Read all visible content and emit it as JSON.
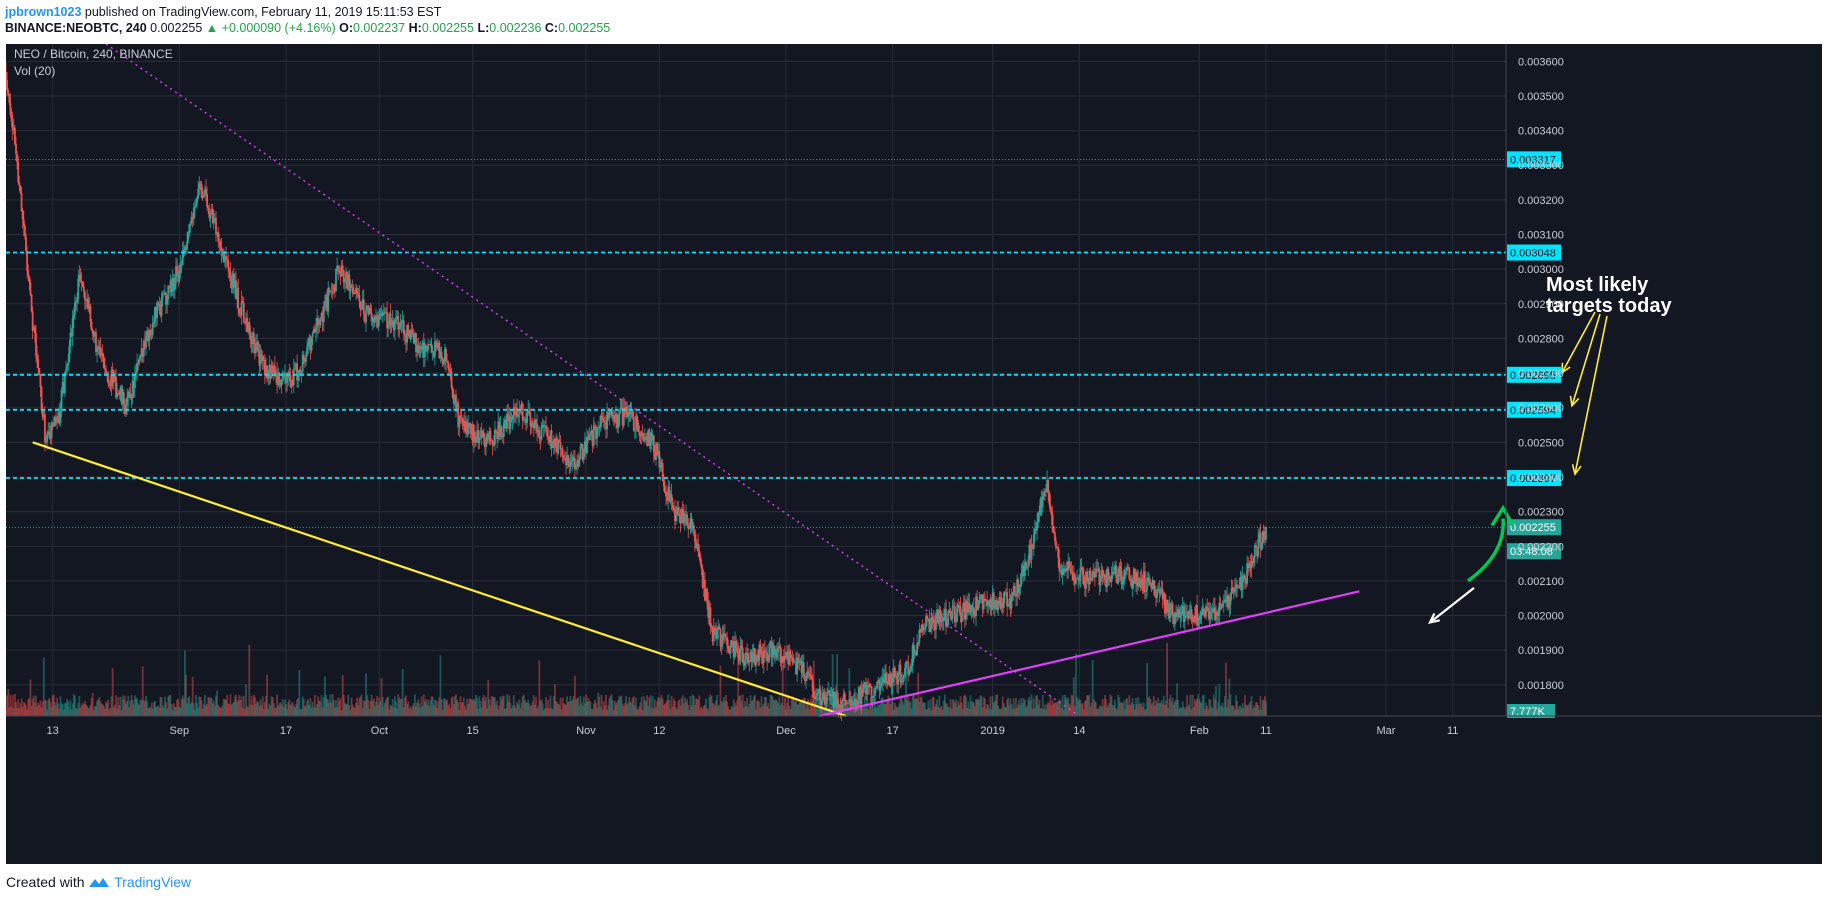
{
  "header": {
    "author": "jpbrown1023",
    "published": "published on TradingView.com, February 11, 2019 15:11:53 EST",
    "symbol": "BINANCE:NEOBTC, 240",
    "last": "0.002255",
    "change": "▲ +0.000090 (+4.16%)",
    "o_label": "O:",
    "o": "0.002237",
    "h_label": "H:",
    "h": "0.002255",
    "l_label": "L:",
    "l": "0.002236",
    "c_label": "C:",
    "c": "0.002255"
  },
  "legend": {
    "pair": "NEO / Bitcoin, 240, BINANCE",
    "vol": "Vol (20)"
  },
  "annotation": {
    "line1": "Most likely",
    "line2": "targets today"
  },
  "footer": {
    "created": "Created with",
    "brand": "TradingView"
  },
  "colors": {
    "background": "#131722",
    "up": "#26a69a",
    "down": "#ef5350",
    "level": "#00e5ff",
    "trend_yellow": "#ffeb3b",
    "trend_magenta": "#e040fb",
    "arrow_green": "#00c853"
  },
  "chart_data": {
    "type": "candlestick",
    "title": "NEO / Bitcoin, 240, BINANCE",
    "ylim": [
      0.00171,
      0.00365
    ],
    "y_ticks": [
      "0.003600",
      "0.003500",
      "0.003400",
      "0.003300",
      "0.003200",
      "0.003100",
      "0.003000",
      "0.002900",
      "0.002800",
      "0.002700",
      "0.002600",
      "0.002500",
      "0.002400",
      "0.002300",
      "0.002200",
      "0.002100",
      "0.002000",
      "0.001900",
      "0.001800"
    ],
    "x_ticks": [
      {
        "label": "13",
        "date": "2018-08-13"
      },
      {
        "label": "Sep",
        "date": "2018-09-01"
      },
      {
        "label": "17",
        "date": "2018-09-17"
      },
      {
        "label": "Oct",
        "date": "2018-10-01"
      },
      {
        "label": "15",
        "date": "2018-10-15"
      },
      {
        "label": "Nov",
        "date": "2018-11-01"
      },
      {
        "label": "12",
        "date": "2018-11-12"
      },
      {
        "label": "Dec",
        "date": "2018-12-01"
      },
      {
        "label": "17",
        "date": "2018-12-17"
      },
      {
        "label": "2019",
        "date": "2019-01-01"
      },
      {
        "label": "14",
        "date": "2019-01-14"
      },
      {
        "label": "Feb",
        "date": "2019-02-01"
      },
      {
        "label": "11",
        "date": "2019-02-11"
      },
      {
        "label": "Mar",
        "date": "2019-03-01"
      },
      {
        "label": "11",
        "date": "2019-03-11"
      }
    ],
    "price_path": [
      [
        "2018-08-06",
        0.00357
      ],
      [
        "2018-08-08",
        0.00325
      ],
      [
        "2018-08-10",
        0.00285
      ],
      [
        "2018-08-12",
        0.0025
      ],
      [
        "2018-08-14",
        0.00258
      ],
      [
        "2018-08-17",
        0.00298
      ],
      [
        "2018-08-20",
        0.00275
      ],
      [
        "2018-08-24",
        0.0026
      ],
      [
        "2018-08-28",
        0.00285
      ],
      [
        "2018-09-01",
        0.003
      ],
      [
        "2018-09-04",
        0.00325
      ],
      [
        "2018-09-06",
        0.00315
      ],
      [
        "2018-09-10",
        0.0029
      ],
      [
        "2018-09-14",
        0.0027
      ],
      [
        "2018-09-18",
        0.00268
      ],
      [
        "2018-09-21",
        0.0028
      ],
      [
        "2018-09-25",
        0.003
      ],
      [
        "2018-09-29",
        0.00287
      ],
      [
        "2018-10-03",
        0.00285
      ],
      [
        "2018-10-07",
        0.00278
      ],
      [
        "2018-10-11",
        0.00275
      ],
      [
        "2018-10-13",
        0.00255
      ],
      [
        "2018-10-17",
        0.0025
      ],
      [
        "2018-10-22",
        0.00259
      ],
      [
        "2018-10-26",
        0.00252
      ],
      [
        "2018-10-30",
        0.00243
      ],
      [
        "2018-11-03",
        0.00255
      ],
      [
        "2018-11-07",
        0.00258
      ],
      [
        "2018-11-11",
        0.0025
      ],
      [
        "2018-11-14",
        0.0023
      ],
      [
        "2018-11-17",
        0.00225
      ],
      [
        "2018-11-20",
        0.00195
      ],
      [
        "2018-11-25",
        0.00188
      ],
      [
        "2018-11-29",
        0.0019
      ],
      [
        "2018-12-03",
        0.00185
      ],
      [
        "2018-12-06",
        0.00176
      ],
      [
        "2018-12-10",
        0.00175
      ],
      [
        "2018-12-15",
        0.0018
      ],
      [
        "2018-12-19",
        0.00184
      ],
      [
        "2018-12-22",
        0.00198
      ],
      [
        "2018-12-26",
        0.002
      ],
      [
        "2018-12-30",
        0.00203
      ],
      [
        "2019-01-04",
        0.00205
      ],
      [
        "2019-01-07",
        0.0022
      ],
      [
        "2019-01-09",
        0.00239
      ],
      [
        "2019-01-11",
        0.00215
      ],
      [
        "2019-01-15",
        0.0021
      ],
      [
        "2019-01-20",
        0.00212
      ],
      [
        "2019-01-25",
        0.00209
      ],
      [
        "2019-01-28",
        0.002
      ],
      [
        "2019-02-01",
        0.002
      ],
      [
        "2019-02-05",
        0.00203
      ],
      [
        "2019-02-08",
        0.00212
      ],
      [
        "2019-02-11",
        0.002255
      ]
    ],
    "volume_axis_label": "7.777K",
    "horizontal_levels": [
      {
        "value": 0.003317,
        "label": "0.003317",
        "style": "dotted"
      },
      {
        "value": 0.003048,
        "label": "0.003048",
        "style": "dashed"
      },
      {
        "value": 0.002695,
        "label": "0.002695",
        "style": "dashed"
      },
      {
        "value": 0.002594,
        "label": "0.002594",
        "style": "dashed"
      },
      {
        "value": 0.002397,
        "label": "0.002397",
        "style": "dashed"
      },
      {
        "value": 0.002255,
        "label": "0.002255",
        "style": "dotted",
        "current": true
      }
    ],
    "countdown": "03:48:08",
    "trend_lines": [
      {
        "name": "yellow-support",
        "color": "#ffeb3b",
        "from": [
          "2018-08-10",
          0.0025
        ],
        "to": [
          "2018-12-10",
          0.00171
        ]
      },
      {
        "name": "magenta-support",
        "color": "#e040fb",
        "from": [
          "2018-12-06",
          0.00171
        ],
        "to": [
          "2019-02-25",
          0.00207
        ]
      },
      {
        "name": "magenta-resistance",
        "color": "#e040fb",
        "style": "dotted",
        "from": [
          "2018-08-21",
          0.00365
        ],
        "to": [
          "2019-01-14",
          0.00171
        ]
      }
    ]
  }
}
